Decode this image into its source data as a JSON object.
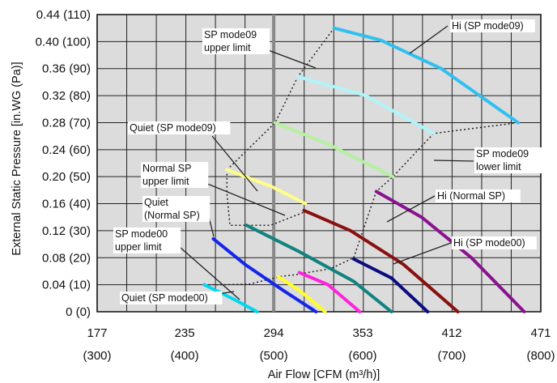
{
  "chart_data": {
    "type": "line",
    "title": "",
    "xlabel": "Air Flow [CFM (m³/h)]",
    "ylabel": "External Static Pressure [in.WG (Pa)]",
    "xlim": [
      177,
      471
    ],
    "ylim": [
      0,
      0.44
    ],
    "grid": true,
    "x_ticks": [
      {
        "value": 177,
        "label": "177",
        "label2": "(300)"
      },
      {
        "value": 235,
        "label": "235",
        "label2": "(400)"
      },
      {
        "value": 294,
        "label": "294",
        "label2": "(500)"
      },
      {
        "value": 353,
        "label": "353",
        "label2": "(600)"
      },
      {
        "value": 412,
        "label": "412",
        "label2": "(700)"
      },
      {
        "value": 471,
        "label": "471",
        "label2": "(800)"
      }
    ],
    "y_ticks": [
      {
        "value": 0,
        "label": "0 (0)"
      },
      {
        "value": 0.04,
        "label": "0.04 (10)"
      },
      {
        "value": 0.08,
        "label": "0.08 (20)"
      },
      {
        "value": 0.12,
        "label": "0.12 (30)"
      },
      {
        "value": 0.16,
        "label": "0.16 (40)"
      },
      {
        "value": 0.2,
        "label": "0.20 (50)"
      },
      {
        "value": 0.24,
        "label": "0.24 (60)"
      },
      {
        "value": 0.28,
        "label": "0.28 (70)"
      },
      {
        "value": 0.32,
        "label": "0.32 (80)"
      },
      {
        "value": 0.36,
        "label": "0.36 (90)"
      },
      {
        "value": 0.4,
        "label": "0.40 (100)"
      },
      {
        "value": 0.44,
        "label": "0.44 (110)"
      }
    ],
    "series": [
      {
        "color": "#00d8f0",
        "points": [
          [
            248,
            0.04
          ],
          [
            268,
            0.018
          ],
          [
            283,
            0.0
          ]
        ]
      },
      {
        "color": "#1426e8",
        "points": [
          [
            254,
            0.108
          ],
          [
            275,
            0.07
          ],
          [
            300,
            0.032
          ],
          [
            322,
            0.0
          ]
        ]
      },
      {
        "color": "#ffff2a",
        "points": [
          [
            297,
            0.052
          ],
          [
            312,
            0.03
          ],
          [
            328,
            0.0
          ]
        ]
      },
      {
        "color": "#ff22dd",
        "points": [
          [
            311,
            0.058
          ],
          [
            330,
            0.04
          ],
          [
            351,
            0.0
          ]
        ]
      },
      {
        "color": "#11827f",
        "points": [
          [
            276,
            0.128
          ],
          [
            310,
            0.09
          ],
          [
            347,
            0.045
          ],
          [
            372,
            0.0
          ]
        ]
      },
      {
        "color": "#0c0c80",
        "points": [
          [
            347,
            0.078
          ],
          [
            372,
            0.05
          ],
          [
            396,
            0.0
          ]
        ]
      },
      {
        "color": "#8a1010",
        "points": [
          [
            314,
            0.15
          ],
          [
            345,
            0.12
          ],
          [
            380,
            0.07
          ],
          [
            416,
            0.0
          ]
        ]
      },
      {
        "color": "#8a1290",
        "points": [
          [
            362,
            0.178
          ],
          [
            392,
            0.14
          ],
          [
            425,
            0.08
          ],
          [
            460,
            0.0
          ]
        ]
      },
      {
        "color": "#ffff88",
        "points": [
          [
            263,
            0.21
          ],
          [
            292,
            0.186
          ],
          [
            315,
            0.16
          ]
        ]
      },
      {
        "color": "#b6f0a0",
        "points": [
          [
            295,
            0.28
          ],
          [
            330,
            0.248
          ],
          [
            373,
            0.2
          ]
        ]
      },
      {
        "color": "#b0f4fa",
        "points": [
          [
            310,
            0.348
          ],
          [
            355,
            0.32
          ],
          [
            400,
            0.264
          ]
        ]
      },
      {
        "color": "#30c0f0",
        "points": [
          [
            334,
            0.42
          ],
          [
            365,
            0.402
          ],
          [
            405,
            0.36
          ],
          [
            456,
            0.28
          ]
        ]
      }
    ],
    "limit_lines": [
      {
        "name": "SP mode00 upper limit",
        "points": [
          [
            248,
            0.04
          ],
          [
            259,
            0.04
          ],
          [
            278,
            0.041
          ],
          [
            298,
            0.052
          ],
          [
            309,
            0.055
          ],
          [
            332,
            0.064
          ],
          [
            347,
            0.08
          ]
        ]
      },
      {
        "name": "Normal SP upper limit",
        "points": [
          [
            263,
            0.21
          ],
          [
            263,
            0.175
          ],
          [
            265,
            0.128
          ],
          [
            292,
            0.128
          ],
          [
            317,
            0.15
          ]
        ]
      },
      {
        "name": "SP mode09 upper limit",
        "points": [
          [
            263,
            0.21
          ],
          [
            295,
            0.28
          ],
          [
            310,
            0.348
          ],
          [
            334,
            0.42
          ]
        ]
      },
      {
        "name": "SP mode09 lower limit",
        "points": [
          [
            347,
            0.08
          ],
          [
            362,
            0.178
          ],
          [
            373,
            0.2
          ],
          [
            400,
            0.264
          ],
          [
            456,
            0.28
          ]
        ]
      }
    ],
    "annotations": [
      {
        "text": "Hi (SP mode09)"
      },
      {
        "text": "SP mode09",
        "text2": "upper limit"
      },
      {
        "text": "Quiet (SP mode09)"
      },
      {
        "text": "SP mode09",
        "text2": "lower limit"
      },
      {
        "text": "Normal SP",
        "text2": "upper limit"
      },
      {
        "text": "Quiet",
        "text2": "(Normal SP)"
      },
      {
        "text": "Hi (Normal SP)"
      },
      {
        "text": "SP mode00",
        "text2": "upper limit"
      },
      {
        "text": "Hi (SP mode00)"
      },
      {
        "text": "Quiet (SP mode00)"
      }
    ]
  }
}
